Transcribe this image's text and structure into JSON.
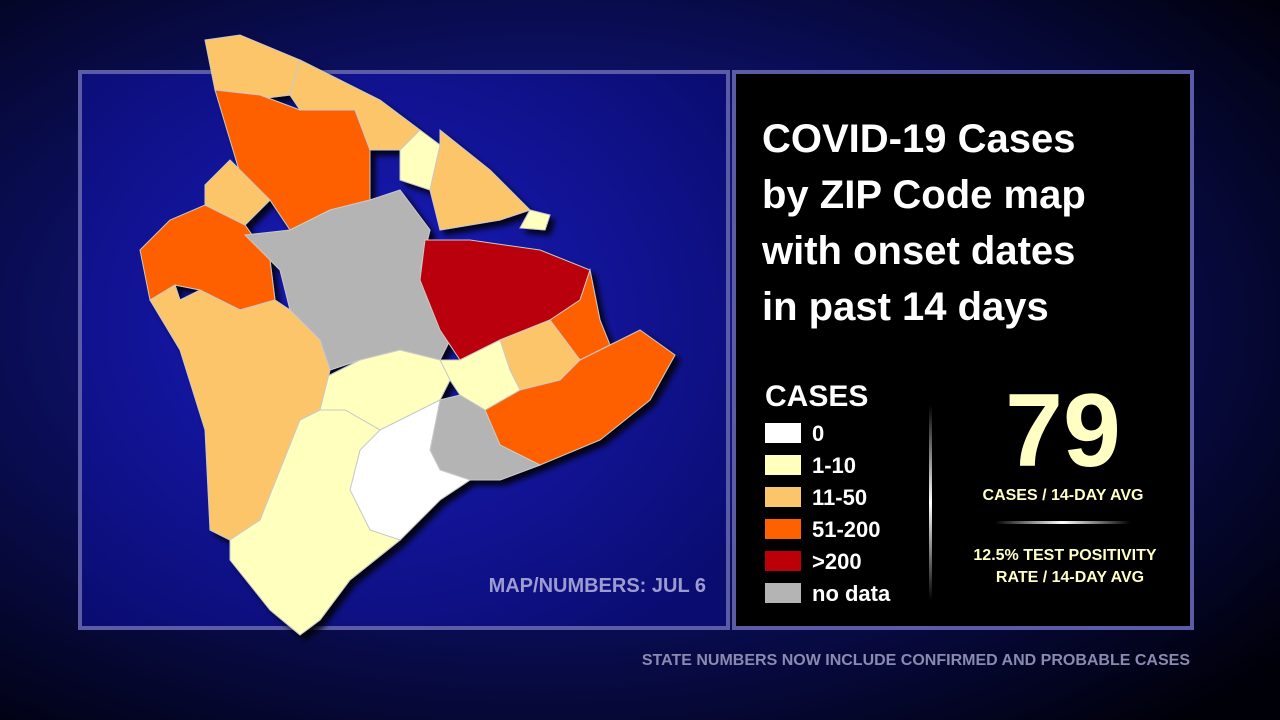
{
  "title_lines": [
    "COVID-19 Cases",
    "by ZIP Code map",
    "with onset dates",
    "in past 14 days"
  ],
  "legend": {
    "title": "CASES",
    "items": [
      {
        "label": "0",
        "color": "#ffffff"
      },
      {
        "label": "1-10",
        "color": "#ffffbe"
      },
      {
        "label": "11-50",
        "color": "#fdc56b"
      },
      {
        "label": "51-200",
        "color": "#fe6100"
      },
      {
        "label": ">200",
        "color": "#bb0007"
      },
      {
        "label": "no data",
        "color": "#b4b4b4"
      }
    ]
  },
  "cases_avg": {
    "value": 79,
    "label": "CASES / 14-DAY AVG"
  },
  "positivity_lines": [
    "12.5% TEST POSITIVITY",
    "RATE / 14-DAY AVG"
  ],
  "map_date": "MAP/NUMBERS: JUL 6",
  "footer": "STATE NUMBERS NOW INCLUDE CONFIRMED AND PROBABLE CASES"
}
